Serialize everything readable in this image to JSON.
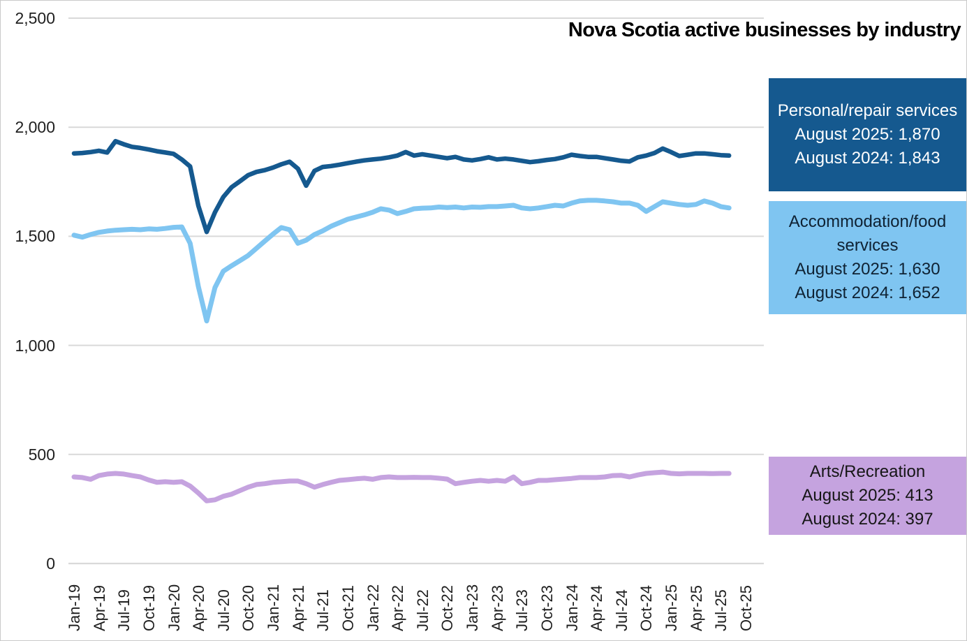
{
  "title": "Nova Scotia active businesses by industry",
  "colors": {
    "gridline": "#d9d9d9",
    "axis_text": "#1f1f1f",
    "personal": "#15598F",
    "accommodation": "#7FC5F1",
    "arts": "#C5A3DF"
  },
  "legend": [
    {
      "name": "Personal/repair services",
      "line_2025": "August 2025: 1,870",
      "line_2024": "August 2024: 1,843",
      "bg": "#15598F",
      "fg": "#ffffff"
    },
    {
      "name": "Accommodation/food services",
      "line_2025": "August 2025: 1,630",
      "line_2024": "August 2024: 1,652",
      "bg": "#7FC5F1",
      "fg": "#0f2233"
    },
    {
      "name": "Arts/Recreation",
      "line_2025": "August 2025: 413",
      "line_2024": "August 2024: 397",
      "bg": "#C5A3DF",
      "fg": "#161616"
    }
  ],
  "chart_data": {
    "type": "line",
    "title": "Nova Scotia active businesses by industry",
    "x_unit": "month",
    "x_frequency": "monthly",
    "x_start": "Jan-19",
    "x_end": "Aug-25",
    "x_tick_labels": [
      "Jan-19",
      "Apr-19",
      "Jul-19",
      "Oct-19",
      "Jan-20",
      "Apr-20",
      "Jul-20",
      "Oct-20",
      "Jan-21",
      "Apr-21",
      "Jul-21",
      "Oct-21",
      "Jan-22",
      "Apr-22",
      "Jul-22",
      "Oct-22",
      "Jan-23",
      "Apr-23",
      "Jul-23",
      "Oct-23",
      "Jan-24",
      "Apr-24",
      "Jul-24",
      "Oct-24",
      "Jan-25",
      "Apr-25",
      "Jul-25",
      "Oct-25"
    ],
    "y_tick_labels": [
      "0",
      "500",
      "1,000",
      "1,500",
      "2,000",
      "2,500"
    ],
    "y_ticks": [
      0,
      500,
      1000,
      1500,
      2000,
      2500
    ],
    "ylim": [
      0,
      2500
    ],
    "grid": "horizontal",
    "legend_position": "right",
    "series": [
      {
        "name": "Personal/repair services",
        "color": "#15598F",
        "stroke_width": 6.5,
        "values": [
          1880,
          1882,
          1886,
          1892,
          1884,
          1936,
          1922,
          1910,
          1905,
          1898,
          1890,
          1884,
          1878,
          1852,
          1820,
          1640,
          1520,
          1610,
          1680,
          1725,
          1752,
          1780,
          1795,
          1803,
          1815,
          1830,
          1842,
          1810,
          1732,
          1800,
          1818,
          1822,
          1828,
          1835,
          1842,
          1848,
          1852,
          1856,
          1862,
          1870,
          1886,
          1870,
          1876,
          1870,
          1864,
          1858,
          1864,
          1852,
          1848,
          1854,
          1862,
          1852,
          1856,
          1852,
          1846,
          1840,
          1844,
          1850,
          1854,
          1862,
          1874,
          1868,
          1864,
          1864,
          1858,
          1852,
          1846,
          1843,
          1862,
          1870,
          1882,
          1902,
          1886,
          1868,
          1874,
          1880,
          1880,
          1876,
          1872,
          1870
        ]
      },
      {
        "name": "Accommodation/food services",
        "color": "#7FC5F1",
        "stroke_width": 7,
        "values": [
          1505,
          1496,
          1508,
          1518,
          1524,
          1528,
          1530,
          1532,
          1530,
          1534,
          1532,
          1536,
          1541,
          1543,
          1468,
          1270,
          1112,
          1265,
          1340,
          1365,
          1388,
          1412,
          1445,
          1478,
          1510,
          1540,
          1530,
          1468,
          1482,
          1508,
          1525,
          1546,
          1562,
          1578,
          1588,
          1598,
          1610,
          1626,
          1620,
          1604,
          1614,
          1626,
          1629,
          1630,
          1634,
          1632,
          1634,
          1630,
          1634,
          1633,
          1636,
          1636,
          1639,
          1642,
          1630,
          1626,
          1630,
          1636,
          1642,
          1639,
          1652,
          1662,
          1665,
          1665,
          1662,
          1658,
          1652,
          1652,
          1642,
          1614,
          1636,
          1658,
          1652,
          1646,
          1642,
          1646,
          1662,
          1652,
          1636,
          1630
        ]
      },
      {
        "name": "Arts/Recreation",
        "color": "#C5A3DF",
        "stroke_width": 7,
        "values": [
          397,
          394,
          386,
          403,
          410,
          413,
          410,
          403,
          397,
          383,
          372,
          375,
          372,
          375,
          355,
          323,
          287,
          292,
          308,
          318,
          334,
          350,
          362,
          366,
          372,
          375,
          378,
          378,
          366,
          350,
          362,
          372,
          381,
          384,
          388,
          391,
          386,
          394,
          397,
          394,
          394,
          395,
          394,
          394,
          391,
          387,
          366,
          372,
          377,
          381,
          377,
          381,
          377,
          397,
          366,
          372,
          381,
          381,
          384,
          387,
          390,
          394,
          394,
          394,
          397,
          403,
          404,
          397,
          406,
          413,
          416,
          419,
          413,
          411,
          413,
          413,
          413,
          412,
          413,
          413
        ]
      }
    ],
    "annotations": [
      "Personal/repair services August 2025: 1,870 | August 2024: 1,843",
      "Accommodation/food services August 2025: 1,630 | August 2024: 1,652",
      "Arts/Recreation August 2025: 413 | August 2024: 397"
    ]
  }
}
